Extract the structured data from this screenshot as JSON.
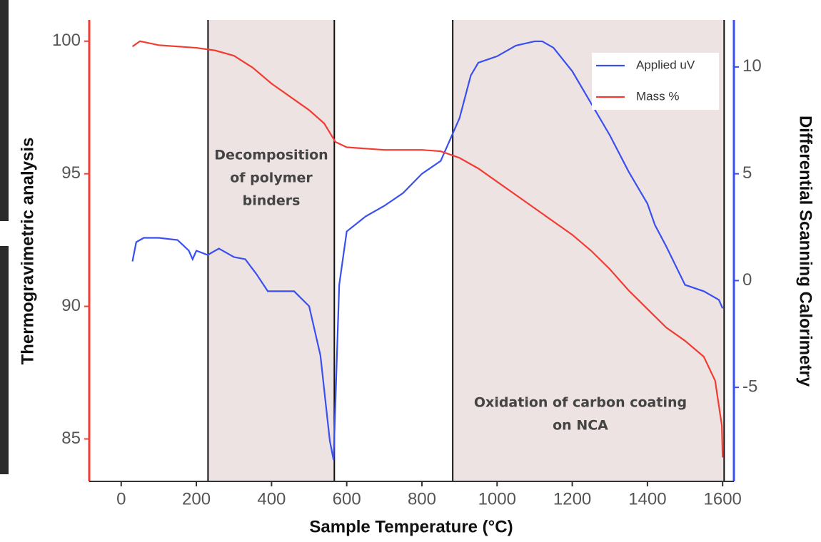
{
  "chart_data": {
    "type": "line",
    "xlabel": "Sample Temperature (°C)",
    "ylabel": "Thermogravimetric analysis",
    "y2label": "Differential Scanning Calorimetry",
    "xlim": [
      -85,
      1630
    ],
    "xticks": [
      0,
      200,
      400,
      600,
      800,
      1000,
      1200,
      1400,
      1600
    ],
    "ylim": [
      83.4,
      100.8
    ],
    "yticks": [
      85,
      90,
      95,
      100
    ],
    "y2lim": [
      -9.4,
      12.2
    ],
    "y2ticks": [
      -5,
      0,
      5,
      10
    ],
    "y_axis_color": "#f03c32",
    "y2_axis_color": "#3a4ff0",
    "legend": "upper right",
    "shaded_regions": [
      {
        "x": [
          231,
          567
        ],
        "color": "#ede3e3",
        "label": [
          "Decomposition",
          "of polymer",
          "binders"
        ]
      },
      {
        "x": [
          882,
          1604
        ],
        "color": "#ede3e3",
        "label": [
          "Oxidation of carbon coating",
          "on NCA"
        ]
      }
    ],
    "series": [
      {
        "name": "Applied uV",
        "color": "#3a4ff0",
        "axis": "y2",
        "x": [
          30,
          40,
          60,
          100,
          150,
          180,
          190,
          200,
          230,
          260,
          300,
          330,
          360,
          390,
          420,
          460,
          500,
          530,
          555,
          565,
          580,
          600,
          650,
          700,
          750,
          800,
          850,
          900,
          930,
          950,
          1000,
          1050,
          1100,
          1120,
          1150,
          1200,
          1300,
          1350,
          1400,
          1420,
          1450,
          1500,
          1550,
          1590,
          1600
        ],
        "values": [
          0.9,
          1.8,
          2.0,
          2.0,
          1.9,
          1.4,
          1.0,
          1.4,
          1.2,
          1.5,
          1.1,
          1.0,
          0.3,
          -0.5,
          -0.5,
          -0.5,
          -1.2,
          -3.5,
          -7.5,
          -8.4,
          -0.2,
          2.3,
          3.0,
          3.5,
          4.1,
          5.0,
          5.6,
          7.6,
          9.6,
          10.2,
          10.5,
          11.0,
          11.2,
          11.2,
          10.9,
          9.8,
          6.8,
          5.1,
          3.6,
          2.6,
          1.6,
          -0.2,
          -0.5,
          -0.9,
          -1.3
        ]
      },
      {
        "name": "Mass %",
        "color": "#f03c32",
        "axis": "y",
        "x": [
          30,
          50,
          100,
          200,
          250,
          300,
          350,
          400,
          450,
          500,
          540,
          570,
          600,
          700,
          800,
          850,
          900,
          950,
          1000,
          1050,
          1100,
          1150,
          1200,
          1250,
          1300,
          1350,
          1400,
          1450,
          1500,
          1550,
          1580,
          1598,
          1600
        ],
        "values": [
          99.8,
          100.0,
          99.85,
          99.75,
          99.65,
          99.45,
          99.0,
          98.4,
          97.9,
          97.4,
          96.9,
          96.2,
          96.0,
          95.9,
          95.9,
          95.85,
          95.6,
          95.2,
          94.7,
          94.2,
          93.7,
          93.2,
          92.7,
          92.1,
          91.4,
          90.6,
          89.9,
          89.2,
          88.7,
          88.1,
          87.2,
          85.5,
          84.3
        ]
      }
    ]
  }
}
